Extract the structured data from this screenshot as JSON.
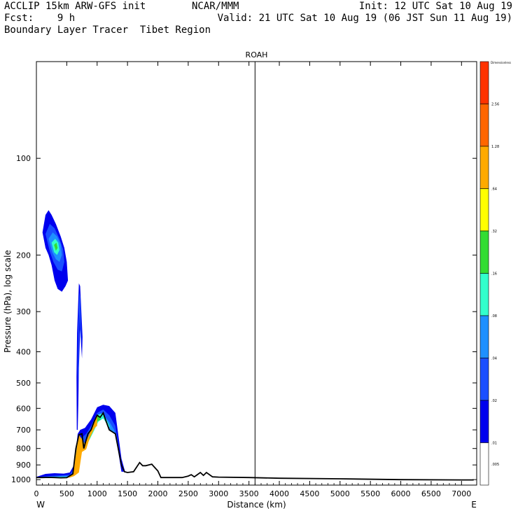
{
  "header": {
    "line1_left": "ACCLIP 15km ARW-GFS init",
    "line1_center": "NCAR/MMM",
    "line1_right": "Init: 12 UTC Sat 10 Aug 19",
    "line2_left": "Fcst:    9 h",
    "line2_right": "Valid: 21 UTC Sat 10 Aug 19 (06 JST Sun 11 Aug 19)",
    "line3_left": "Boundary Layer Tracer  Tibet Region"
  },
  "chart_data": {
    "type": "area",
    "title": "ROAH",
    "xlabel": "Distance (km)",
    "ylabel": "Pressure (hPa), log scale",
    "x_ticks": [
      "0",
      "500",
      "1000",
      "1500",
      "2000",
      "2500",
      "3000",
      "3500",
      "4000",
      "4500",
      "5000",
      "5500",
      "6000",
      "6500",
      "7000"
    ],
    "y_ticks": [
      "100",
      "200",
      "300",
      "400",
      "500",
      "600",
      "700",
      "800",
      "900",
      "1000"
    ],
    "xlim": [
      0,
      7250
    ],
    "ylim": [
      1040,
      50
    ],
    "y_scale": "log",
    "x_end_labels": {
      "left": "W",
      "right": "E"
    },
    "vertical_marker_km": 3600,
    "colorbar": {
      "unit_label": "Dimensionless",
      "ticks": [
        "2.56",
        "1.28",
        ".64",
        ".32",
        ".16",
        ".08",
        ".04",
        ".02",
        ".01",
        ".005"
      ],
      "colors": [
        "#ff3300",
        "#ff6600",
        "#ffaa00",
        "#ffff00",
        "#33dd33",
        "#33ffcc",
        "#1e90ff",
        "#1a4fff",
        "#0000ee",
        "#ffffff"
      ]
    },
    "terrain_km_hpa": [
      [
        0,
        985
      ],
      [
        100,
        985
      ],
      [
        200,
        984
      ],
      [
        300,
        985
      ],
      [
        400,
        987
      ],
      [
        500,
        986
      ],
      [
        600,
        960
      ],
      [
        650,
        800
      ],
      [
        700,
        725
      ],
      [
        750,
        720
      ],
      [
        780,
        800
      ],
      [
        800,
        775
      ],
      [
        850,
        720
      ],
      [
        900,
        700
      ],
      [
        950,
        660
      ],
      [
        1000,
        630
      ],
      [
        1050,
        640
      ],
      [
        1100,
        620
      ],
      [
        1150,
        660
      ],
      [
        1200,
        700
      ],
      [
        1250,
        710
      ],
      [
        1300,
        720
      ],
      [
        1400,
        900
      ],
      [
        1450,
        945
      ],
      [
        1500,
        950
      ],
      [
        1600,
        945
      ],
      [
        1700,
        885
      ],
      [
        1750,
        905
      ],
      [
        1800,
        905
      ],
      [
        1900,
        895
      ],
      [
        2000,
        940
      ],
      [
        2050,
        985
      ],
      [
        2200,
        985
      ],
      [
        2400,
        985
      ],
      [
        2500,
        975
      ],
      [
        2550,
        965
      ],
      [
        2600,
        980
      ],
      [
        2650,
        965
      ],
      [
        2700,
        950
      ],
      [
        2750,
        970
      ],
      [
        2800,
        950
      ],
      [
        2900,
        980
      ],
      [
        3000,
        982
      ],
      [
        3500,
        985
      ],
      [
        4000,
        990
      ],
      [
        5000,
        994
      ],
      [
        6000,
        1000
      ],
      [
        7000,
        1002
      ],
      [
        7200,
        1002
      ]
    ],
    "tracer_areas": [
      {
        "level_index": 8,
        "points": [
          [
            0,
            980
          ],
          [
            150,
            960
          ],
          [
            300,
            955
          ],
          [
            450,
            958
          ],
          [
            550,
            950
          ],
          [
            620,
            900
          ],
          [
            680,
            720
          ],
          [
            720,
            700
          ],
          [
            800,
            690
          ],
          [
            900,
            650
          ],
          [
            1000,
            595
          ],
          [
            1100,
            585
          ],
          [
            1200,
            590
          ],
          [
            1300,
            620
          ],
          [
            1400,
            860
          ],
          [
            1460,
            945
          ],
          [
            1400,
            945
          ],
          [
            1300,
            720
          ],
          [
            1200,
            700
          ],
          [
            1100,
            620
          ],
          [
            1000,
            630
          ],
          [
            900,
            700
          ],
          [
            800,
            775
          ],
          [
            700,
            725
          ],
          [
            600,
            960
          ],
          [
            500,
            986
          ],
          [
            300,
            985
          ],
          [
            0,
            985
          ]
        ]
      },
      {
        "level_index": 7,
        "points": [
          [
            0,
            983
          ],
          [
            200,
            975
          ],
          [
            400,
            970
          ],
          [
            550,
            965
          ],
          [
            640,
            910
          ],
          [
            690,
            740
          ],
          [
            750,
            740
          ],
          [
            820,
            720
          ],
          [
            900,
            680
          ],
          [
            1000,
            620
          ],
          [
            1100,
            605
          ],
          [
            1200,
            630
          ],
          [
            1300,
            680
          ],
          [
            1380,
            840
          ],
          [
            1300,
            720
          ],
          [
            1200,
            700
          ],
          [
            1100,
            620
          ],
          [
            1000,
            630
          ],
          [
            900,
            700
          ],
          [
            800,
            775
          ],
          [
            700,
            725
          ],
          [
            600,
            960
          ],
          [
            500,
            986
          ],
          [
            300,
            985
          ],
          [
            0,
            985
          ]
        ]
      },
      {
        "level_index": 6,
        "points": [
          [
            0,
            984
          ],
          [
            200,
            978
          ],
          [
            420,
            976
          ],
          [
            560,
            972
          ],
          [
            650,
            930
          ],
          [
            700,
            760
          ],
          [
            780,
            790
          ],
          [
            840,
            740
          ],
          [
            920,
            700
          ],
          [
            1000,
            640
          ],
          [
            1100,
            630
          ],
          [
            1200,
            660
          ],
          [
            1280,
            700
          ],
          [
            1300,
            720
          ],
          [
            1200,
            700
          ],
          [
            1100,
            620
          ],
          [
            1000,
            630
          ],
          [
            900,
            700
          ],
          [
            800,
            775
          ],
          [
            700,
            725
          ],
          [
            600,
            960
          ],
          [
            500,
            986
          ],
          [
            300,
            985
          ],
          [
            0,
            985
          ]
        ]
      },
      {
        "level_index": 5,
        "points": [
          [
            0,
            985
          ],
          [
            150,
            982
          ],
          [
            350,
            980
          ],
          [
            500,
            980
          ],
          [
            580,
            975
          ],
          [
            660,
            940
          ],
          [
            720,
            780
          ],
          [
            780,
            810
          ],
          [
            860,
            760
          ],
          [
            940,
            710
          ],
          [
            1020,
            660
          ],
          [
            1100,
            645
          ],
          [
            1180,
            680
          ],
          [
            1220,
            690
          ],
          [
            1100,
            620
          ],
          [
            1000,
            630
          ],
          [
            900,
            700
          ],
          [
            800,
            775
          ],
          [
            700,
            725
          ],
          [
            600,
            960
          ],
          [
            500,
            986
          ],
          [
            300,
            985
          ],
          [
            0,
            985
          ]
        ]
      },
      {
        "level_index": 4,
        "points": [
          [
            100,
            985
          ],
          [
            300,
            983
          ],
          [
            500,
            984
          ],
          [
            600,
            970
          ],
          [
            680,
            930
          ],
          [
            740,
            800
          ],
          [
            800,
            800
          ],
          [
            900,
            730
          ],
          [
            1000,
            660
          ],
          [
            1060,
            650
          ],
          [
            1000,
            630
          ],
          [
            900,
            700
          ],
          [
            800,
            775
          ],
          [
            700,
            725
          ],
          [
            600,
            960
          ],
          [
            500,
            986
          ],
          [
            300,
            985
          ],
          [
            100,
            985
          ]
        ]
      },
      {
        "level_index": 2,
        "points": [
          [
            150,
            985
          ],
          [
            350,
            984
          ],
          [
            550,
            985
          ],
          [
            620,
            975
          ],
          [
            700,
            950
          ],
          [
            750,
            820
          ],
          [
            820,
            805
          ],
          [
            880,
            740
          ],
          [
            960,
            690
          ],
          [
            1000,
            680
          ],
          [
            1000,
            630
          ],
          [
            900,
            700
          ],
          [
            800,
            775
          ],
          [
            700,
            725
          ],
          [
            600,
            960
          ],
          [
            500,
            986
          ],
          [
            150,
            985
          ]
        ]
      },
      {
        "level_index": 8,
        "points": [
          [
            660,
            480
          ],
          [
            670,
            350
          ],
          [
            680,
            310
          ],
          [
            700,
            245
          ],
          [
            720,
            250
          ],
          [
            740,
            300
          ],
          [
            760,
            360
          ],
          [
            750,
            420
          ],
          [
            720,
            340
          ],
          [
            700,
            450
          ],
          [
            690,
            580
          ],
          [
            680,
            700
          ],
          [
            665,
            700
          ]
        ]
      },
      {
        "level_index": 7,
        "points": [
          [
            680,
            450
          ],
          [
            690,
            330
          ],
          [
            705,
            260
          ],
          [
            720,
            270
          ],
          [
            735,
            320
          ],
          [
            745,
            380
          ],
          [
            730,
            360
          ],
          [
            715,
            300
          ],
          [
            700,
            380
          ],
          [
            690,
            520
          ]
        ]
      },
      {
        "level_index": 8,
        "points": [
          [
            100,
            170
          ],
          [
            150,
            150
          ],
          [
            200,
            145
          ],
          [
            250,
            150
          ],
          [
            320,
            160
          ],
          [
            400,
            175
          ],
          [
            460,
            190
          ],
          [
            500,
            210
          ],
          [
            520,
            240
          ],
          [
            480,
            250
          ],
          [
            420,
            260
          ],
          [
            350,
            255
          ],
          [
            300,
            240
          ],
          [
            250,
            215
          ],
          [
            200,
            200
          ],
          [
            150,
            190
          ]
        ]
      },
      {
        "level_index": 7,
        "points": [
          [
            150,
            172
          ],
          [
            220,
            160
          ],
          [
            300,
            165
          ],
          [
            380,
            178
          ],
          [
            440,
            192
          ],
          [
            460,
            210
          ],
          [
            420,
            225
          ],
          [
            350,
            222
          ],
          [
            280,
            210
          ],
          [
            220,
            195
          ]
        ]
      },
      {
        "level_index": 6,
        "points": [
          [
            200,
            178
          ],
          [
            270,
            170
          ],
          [
            340,
            175
          ],
          [
            400,
            185
          ],
          [
            420,
            200
          ],
          [
            380,
            210
          ],
          [
            320,
            206
          ],
          [
            260,
            196
          ]
        ]
      },
      {
        "level_index": 5,
        "points": [
          [
            250,
            183
          ],
          [
            310,
            178
          ],
          [
            360,
            183
          ],
          [
            380,
            193
          ],
          [
            340,
            200
          ],
          [
            290,
            196
          ]
        ]
      },
      {
        "level_index": 4,
        "points": [
          [
            290,
            186
          ],
          [
            330,
            183
          ],
          [
            350,
            190
          ],
          [
            320,
            194
          ]
        ]
      }
    ]
  }
}
